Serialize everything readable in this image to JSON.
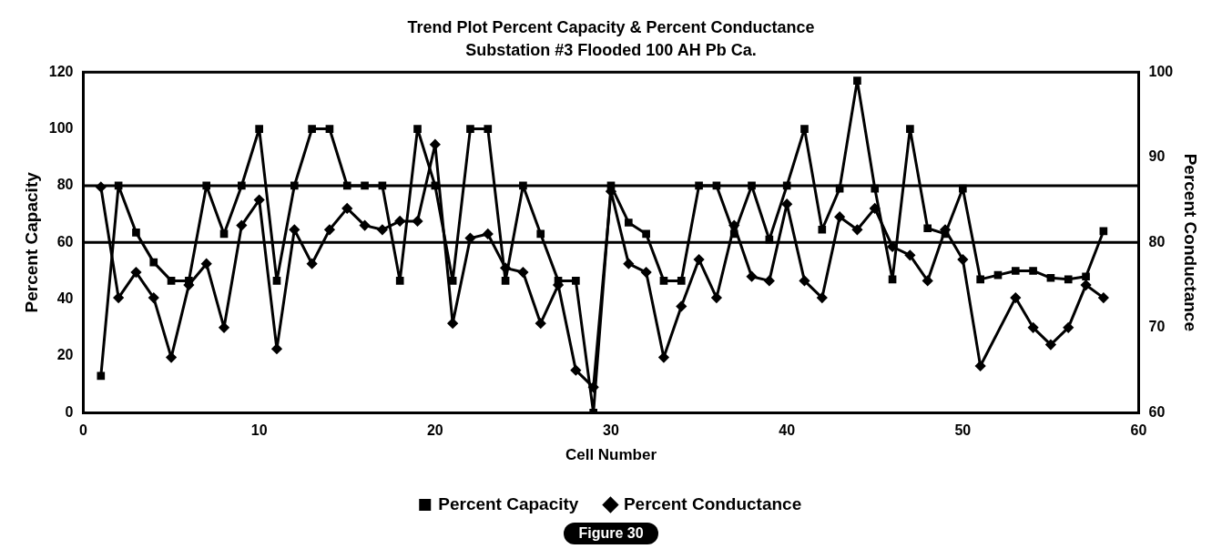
{
  "chart_data": {
    "type": "line",
    "title": "Trend Plot Percent Capacity & Percent Conductance",
    "subtitle": "Substation #3 Flooded 100 AH Pb Ca.",
    "xlabel": "Cell Number",
    "ylabel": "Percent Capacity",
    "y2label": "Percent Conductance",
    "x": [
      1,
      2,
      3,
      4,
      5,
      6,
      7,
      8,
      9,
      10,
      11,
      12,
      13,
      14,
      15,
      16,
      17,
      18,
      19,
      20,
      21,
      22,
      23,
      24,
      25,
      26,
      27,
      28,
      29,
      30,
      31,
      32,
      33,
      34,
      35,
      36,
      37,
      38,
      39,
      40,
      41,
      42,
      43,
      44,
      45,
      46,
      47,
      48,
      49,
      50,
      51,
      52,
      53,
      54,
      55,
      56,
      57,
      58
    ],
    "xlim": [
      0,
      60
    ],
    "xticks": [
      0,
      10,
      20,
      30,
      40,
      50,
      60
    ],
    "ylim": [
      0,
      120
    ],
    "yticks": [
      0,
      20,
      40,
      60,
      80,
      100,
      120
    ],
    "y2lim": [
      60,
      100
    ],
    "y2ticks": [
      60,
      70,
      80,
      90,
      100
    ],
    "series": [
      {
        "name": "Percent Capacity",
        "color": "#000000",
        "marker": "square",
        "values": [
          13,
          80,
          63.5,
          53,
          46.5,
          46.5,
          80,
          63,
          80,
          100,
          46.5,
          80,
          100,
          100,
          80,
          80,
          80,
          46.5,
          100,
          80,
          46.5,
          100,
          100,
          46.5,
          80,
          63,
          46.5,
          46.5,
          0,
          80,
          67,
          63,
          46.5,
          46.5,
          80,
          80,
          63,
          80,
          61,
          80,
          100,
          64.5,
          79,
          117,
          79,
          47,
          100,
          65,
          63,
          79,
          47,
          48.5,
          50,
          50,
          47.5,
          47,
          48,
          64
        ]
      },
      {
        "name": "Percent Conductance",
        "color": "#000000",
        "marker": "diamond",
        "axis": "y2",
        "values": [
          86.5,
          73.5,
          76.5,
          73.5,
          66.5,
          75,
          77.5,
          70,
          82,
          85,
          67.5,
          81.5,
          77.5,
          81.5,
          84,
          82,
          81.5,
          82.5,
          82.5,
          91.5,
          70.5,
          80.5,
          81,
          77,
          76.5,
          70.5,
          75,
          65,
          63,
          86,
          77.5,
          76.5,
          66.5,
          72.5,
          78,
          73.5,
          82,
          76,
          75.5,
          84.5,
          75.5,
          73.5,
          83,
          81.5,
          84,
          79.5,
          78.5,
          75.5,
          81.5,
          78,
          65.5,
          null,
          73.5,
          70,
          68,
          70,
          75,
          73.5
        ]
      }
    ],
    "ref_lines": [
      {
        "axis": "y",
        "value": 80
      },
      {
        "axis": "y",
        "value": 60
      }
    ],
    "legend": "bottom",
    "grid": false,
    "annotations": [
      "Figure 30"
    ]
  }
}
